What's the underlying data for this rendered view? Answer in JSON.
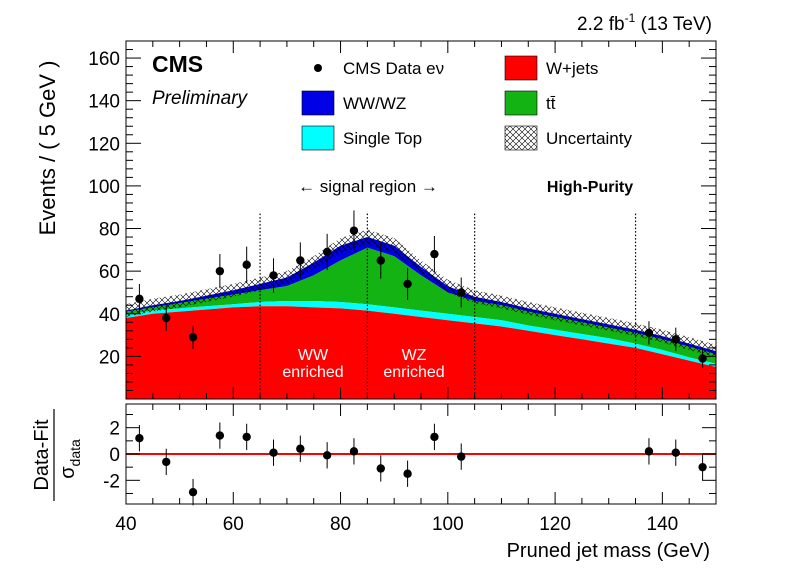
{
  "header": {
    "lumi_text": "2.2 fb",
    "lumi_sup": "-1",
    "energy_text": " (13 TeV)",
    "experiment": "CMS",
    "status": "Preliminary",
    "category": "High-Purity"
  },
  "annotations": {
    "signal_region": "← signal region →",
    "ww_line1": "WW",
    "ww_line2": "enriched",
    "wz_line1": "WZ",
    "wz_line2": "enriched"
  },
  "legend": {
    "data": "CMS Data eν",
    "wjets": "W+jets",
    "wwwz": "WW/WZ",
    "ttbar": "tt̄",
    "singletop": "Single Top",
    "uncertainty": "Uncertainty"
  },
  "colors": {
    "wjets": "#ff0000",
    "ttbar": "#12b312",
    "singletop": "#00ffff",
    "wwwz": "#0000e6",
    "fitline": "#ff0000"
  },
  "chart_data": [
    {
      "type": "area",
      "xlabel": "",
      "ylabel": "Events / ( 5 GeV )",
      "xlim": [
        40,
        150
      ],
      "ylim": [
        0,
        168
      ],
      "xticks": [
        "40",
        "60",
        "80",
        "100",
        "120",
        "140"
      ],
      "yticks": [
        "20",
        "40",
        "60",
        "80",
        "100",
        "120",
        "140",
        "160"
      ],
      "region_boundaries": [
        65,
        85,
        105,
        135
      ],
      "stack": {
        "x": [
          40,
          45,
          50,
          55,
          60,
          65,
          70,
          75,
          80,
          85,
          90,
          95,
          100,
          105,
          110,
          115,
          120,
          125,
          130,
          135,
          140,
          145,
          150
        ],
        "wjets": [
          38,
          40,
          41,
          42,
          43,
          43.5,
          43.5,
          43,
          42.5,
          41.5,
          40,
          38.5,
          37,
          35.5,
          34,
          32,
          30,
          28,
          26,
          24,
          21,
          18,
          15
        ],
        "singletop": [
          39.5,
          41.5,
          42.5,
          43.5,
          44.5,
          45.5,
          46,
          46,
          45.5,
          44.5,
          43,
          41.5,
          40,
          38.5,
          37,
          34.5,
          32.5,
          30.5,
          28.5,
          26,
          23,
          19.5,
          16.5
        ],
        "ttbar": [
          41,
          43,
          45,
          47,
          49,
          51,
          53,
          58,
          65,
          71,
          67,
          58,
          50,
          46,
          44,
          41,
          38.5,
          36,
          33.5,
          31,
          28,
          24.5,
          21
        ],
        "wwwz": [
          41.5,
          44,
          46,
          48.5,
          51,
          54,
          57,
          64,
          72,
          76,
          72,
          62,
          53,
          48,
          45.5,
          42.5,
          40,
          37.5,
          35,
          32.5,
          29.5,
          26,
          22.5
        ],
        "uncertainty": [
          3,
          3,
          3,
          3,
          3,
          3,
          3,
          3,
          3.5,
          3.5,
          3.5,
          3,
          3,
          3,
          3,
          3,
          3,
          3,
          3,
          3,
          3,
          3,
          3
        ]
      },
      "series": [
        {
          "name": "CMS Data eν",
          "x": [
            42.5,
            47.5,
            52.5,
            57.5,
            62.5,
            67.5,
            72.5,
            77.5,
            82.5,
            87.5,
            92.5,
            97.5,
            102.5,
            137.5,
            142.5,
            147.5
          ],
          "y": [
            47,
            38,
            29,
            60,
            63,
            58,
            65,
            69,
            79,
            65,
            54,
            68,
            50,
            31,
            28,
            19
          ],
          "err": [
            7,
            6,
            5.5,
            8,
            8.5,
            8,
            8.5,
            8.5,
            9.5,
            8.5,
            7.5,
            8.5,
            7,
            5.5,
            5.5,
            4.5
          ]
        }
      ]
    },
    {
      "type": "scatter",
      "xlabel": "Pruned jet mass (GeV)",
      "ylabel_main": "Data-Fit",
      "ylabel_den": "σ",
      "ylabel_den_sub": "data",
      "xlim": [
        40,
        150
      ],
      "ylim": [
        -3.8,
        3.8
      ],
      "xticks": [
        "40",
        "60",
        "80",
        "100",
        "120",
        "140"
      ],
      "yticks": [
        "2",
        "0",
        "-2"
      ],
      "series": [
        {
          "name": "",
          "x": [
            42.5,
            47.5,
            52.5,
            57.5,
            62.5,
            67.5,
            72.5,
            77.5,
            82.5,
            87.5,
            92.5,
            97.5,
            102.5,
            137.5,
            142.5,
            147.5
          ],
          "y": [
            1.2,
            -0.6,
            -2.9,
            1.4,
            1.3,
            0.1,
            0.4,
            -0.1,
            0.2,
            -1.1,
            -1.5,
            1.3,
            -0.2,
            0.2,
            0.1,
            -1.0
          ],
          "err": [
            1,
            1,
            1,
            1,
            1,
            1,
            1,
            1,
            1,
            1,
            1,
            1,
            1,
            1,
            1,
            1
          ]
        }
      ]
    }
  ]
}
